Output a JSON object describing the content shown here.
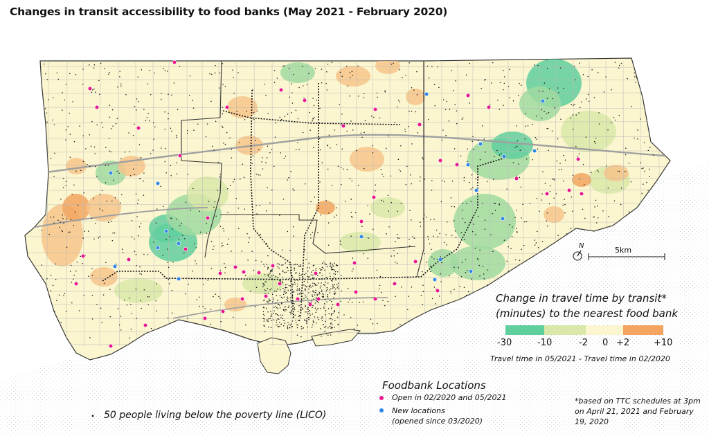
{
  "title": "Changes in transit accessibility to food banks (May 2021 - February 2020)",
  "legend": {
    "title_line1": "Change in travel time by transit*",
    "title_line2": "(minutes) to the nearest food bank",
    "ticks": [
      "-30",
      "-10",
      "-2",
      "0",
      "+2",
      "+10"
    ],
    "note": "Travel time in 05/2021 - Travel time in 02/2020",
    "colors": [
      "#5fcf9e",
      "#9fdba0",
      "#d9e8a8",
      "#fbf6cf",
      "#f6c48b",
      "#f3a45f"
    ]
  },
  "foodbank_legend": {
    "title": "Foodbank Locations",
    "open_label": "Open in 02/2020 and 05/2021",
    "new_label_line1": "New locations",
    "new_label_line2": "(opened since 03/2020)",
    "open_color": "#e8158c",
    "new_color": "#2f86e6"
  },
  "poverty_legend": "50 people living below the poverty line (LICO)",
  "footnote_line1": "*based on TTC schedules at 3pm",
  "footnote_line2": "on April 21, 2021 and February",
  "footnote_line3": "19, 2020",
  "scale_label": "5km",
  "north_label": "N"
}
